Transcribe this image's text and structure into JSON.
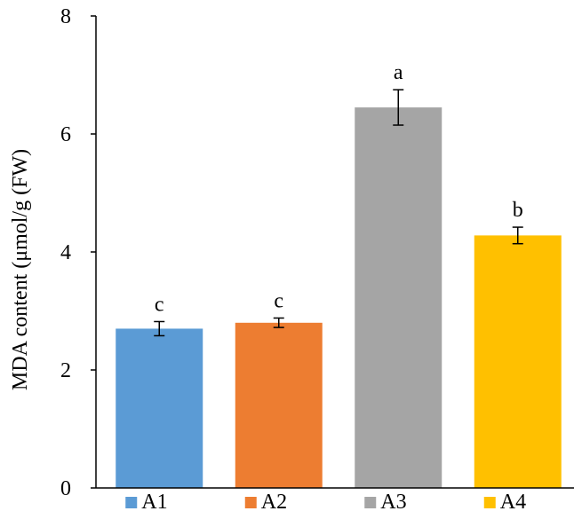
{
  "chart_data": {
    "type": "bar",
    "categories": [
      "A1",
      "A2",
      "A3",
      "A4"
    ],
    "values": [
      2.7,
      2.8,
      6.45,
      4.28
    ],
    "errors": [
      0.12,
      0.08,
      0.3,
      0.14
    ],
    "significance": [
      "c",
      "c",
      "a",
      "b"
    ],
    "colors": [
      "#5B9BD5",
      "#ED7D31",
      "#A5A5A5",
      "#FFC000"
    ],
    "title": "",
    "xlabel": "",
    "ylabel": "MDA content  (μmol/g (FW)",
    "ylim": [
      0,
      8
    ],
    "yticks": [
      0,
      2,
      4,
      6,
      8
    ],
    "legend": {
      "position": "bottom",
      "entries": [
        "A1",
        "A2",
        "A3",
        "A4"
      ]
    },
    "grid": false
  }
}
